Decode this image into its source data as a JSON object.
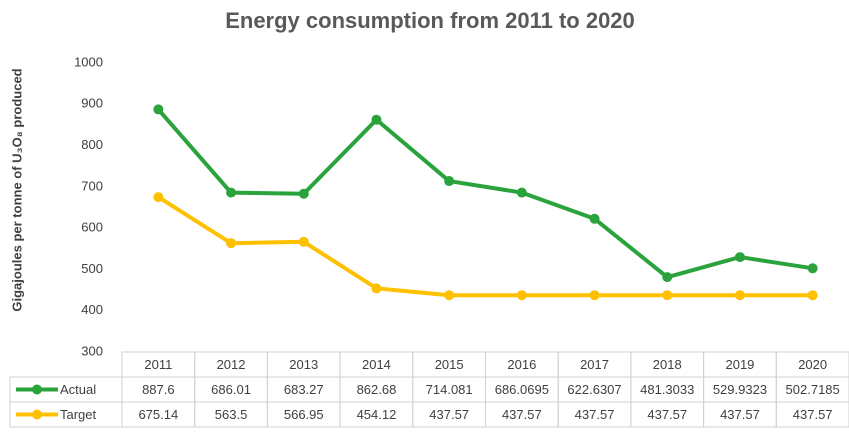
{
  "chart_data": {
    "type": "line",
    "title": "Energy consumption from 2011 to 2020",
    "y_label": "Gigajoules per tonne of U₃O₈ produced",
    "categories": [
      "2011",
      "2012",
      "2013",
      "2014",
      "2015",
      "2016",
      "2017",
      "2018",
      "2019",
      "2020"
    ],
    "series": [
      {
        "name": "Actual",
        "color": "#2aa33d",
        "values": [
          887.6,
          686.01,
          683.27,
          862.68,
          714.081,
          686.0695,
          622.6307,
          481.3033,
          529.9323,
          502.7185
        ]
      },
      {
        "name": "Target",
        "color": "#ffc000",
        "values": [
          675.14,
          563.5,
          566.95,
          454.12,
          437.57,
          437.57,
          437.57,
          437.57,
          437.57,
          437.57
        ]
      }
    ],
    "ylim": [
      300,
      1000
    ],
    "yticks": [
      300,
      400,
      500,
      600,
      700,
      800,
      900,
      1000
    ],
    "grid": false,
    "legend": "table"
  }
}
